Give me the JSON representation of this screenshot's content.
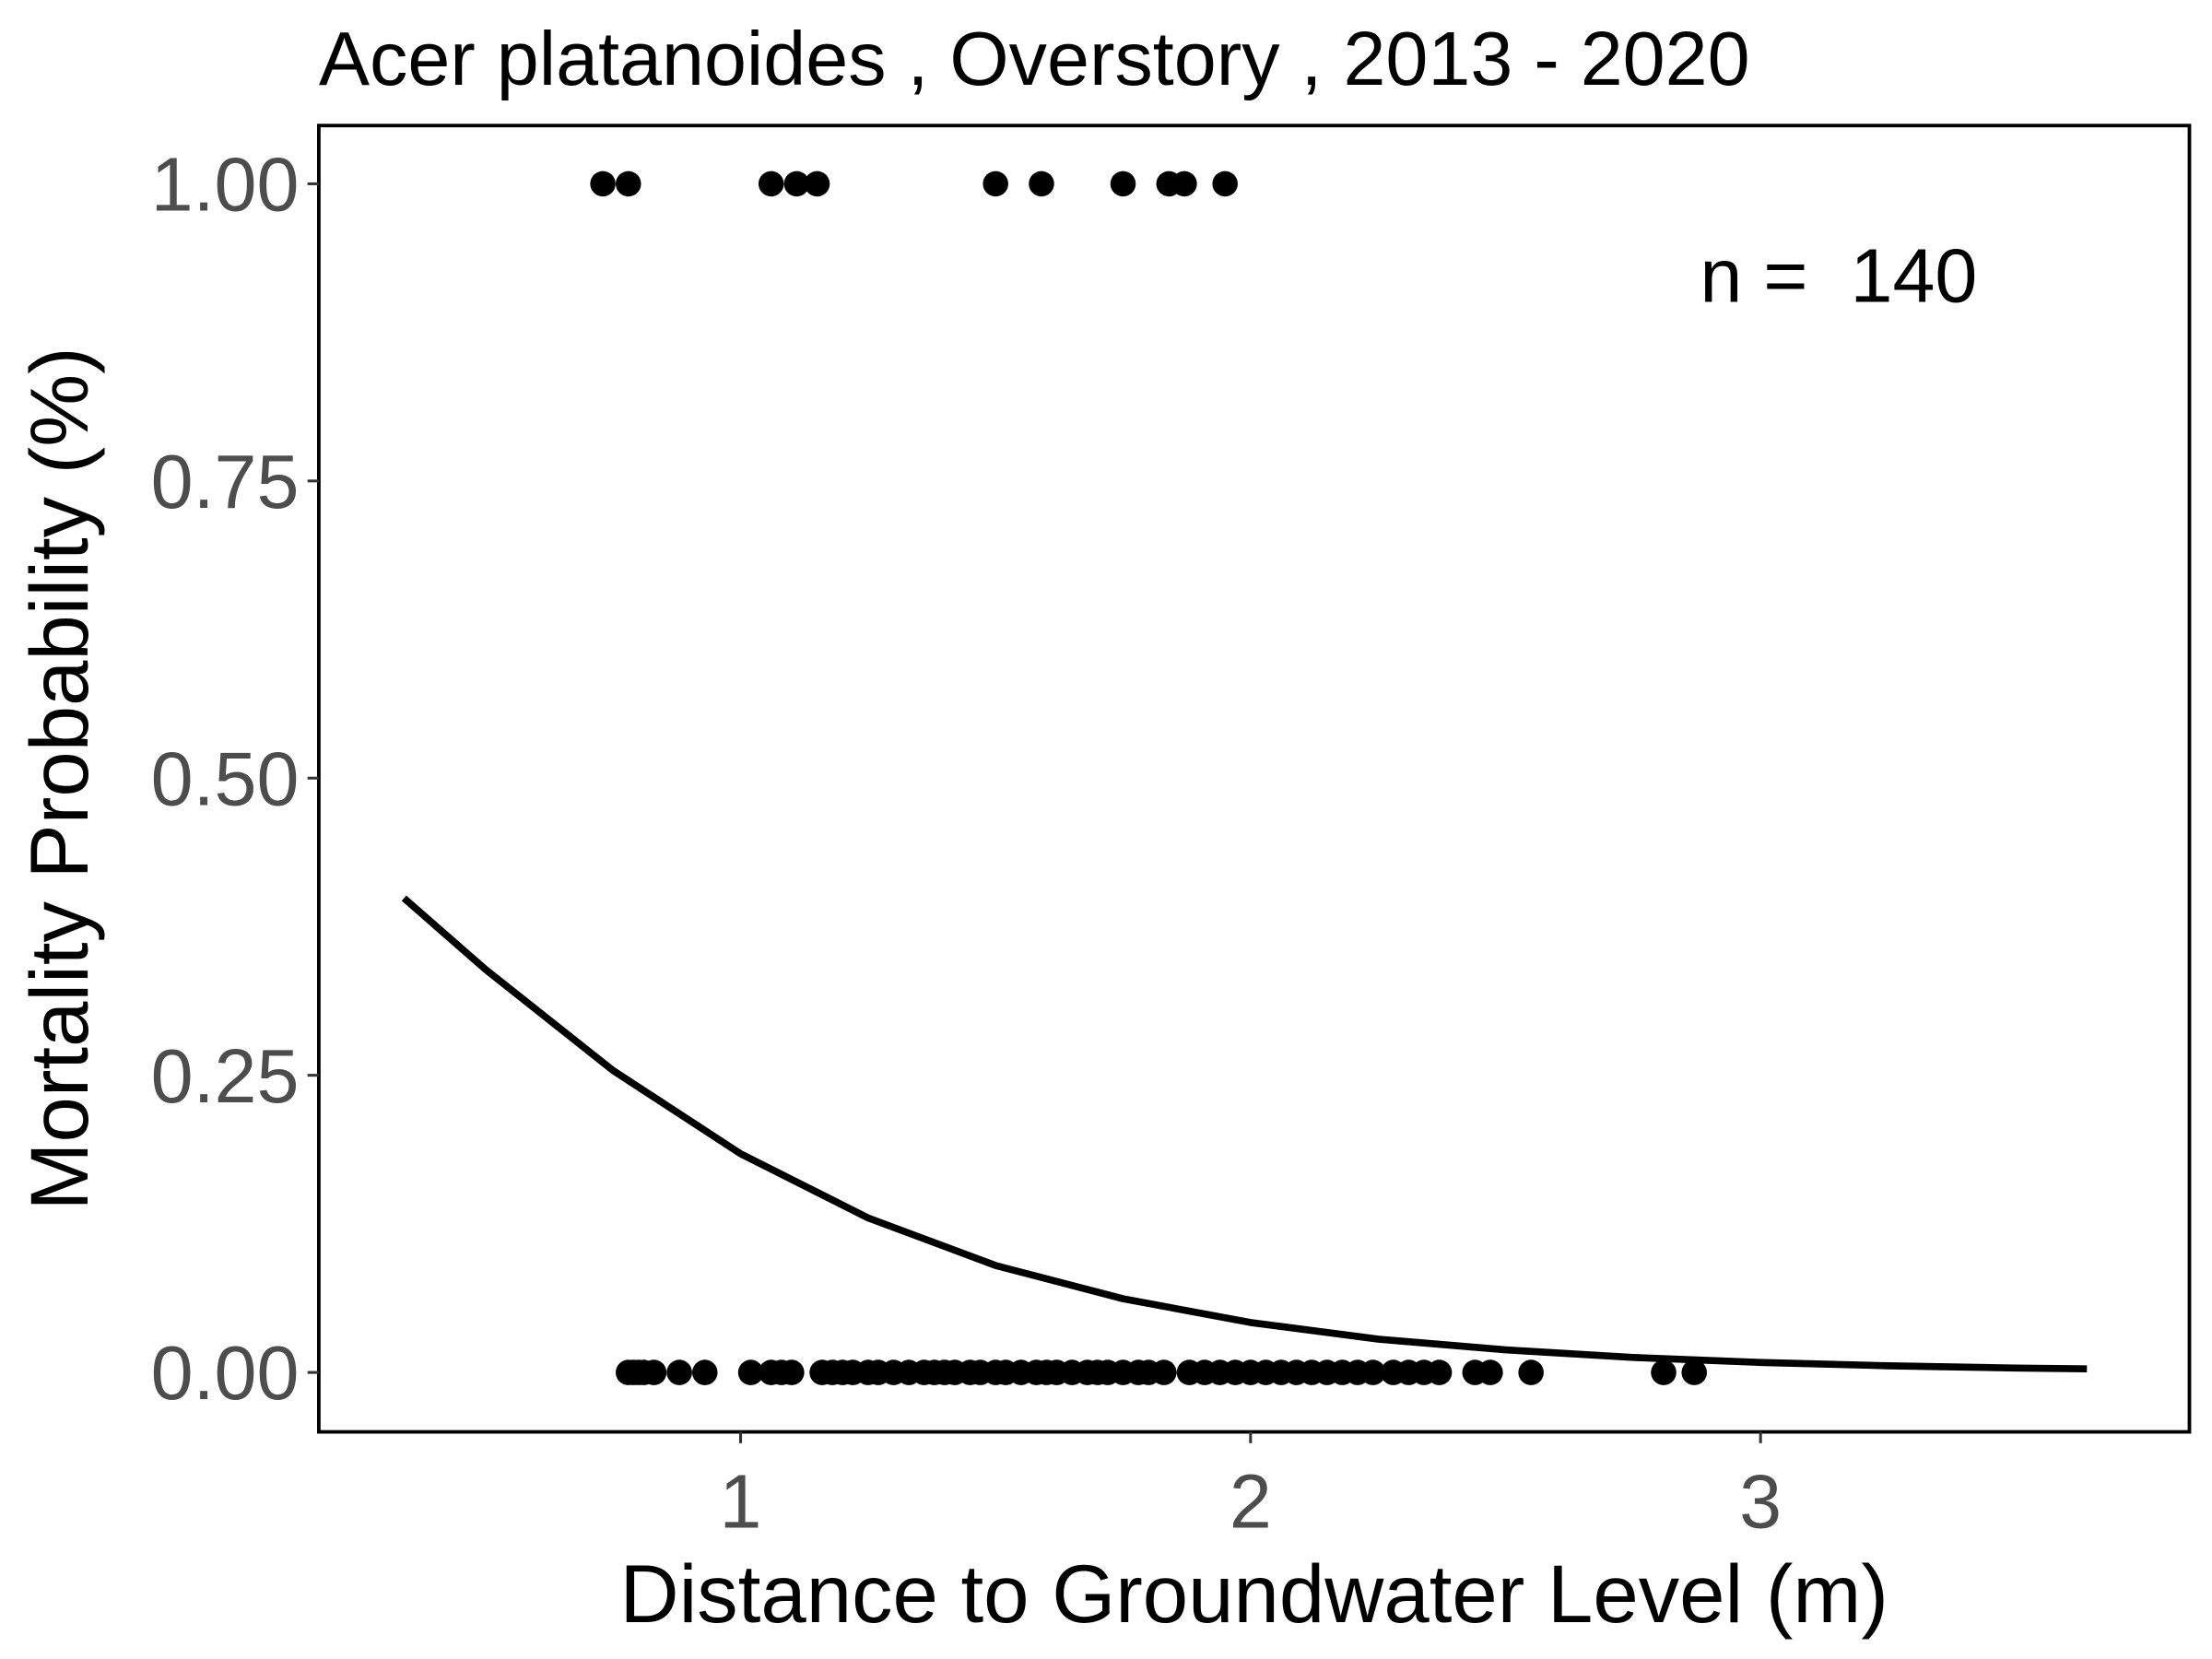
{
  "chart_data": {
    "type": "scatter",
    "title": "Acer platanoides , Overstory , 2013 - 2020",
    "xlabel": "Distance to Groundwater Level (m)",
    "ylabel": "Mortality Probability (%)",
    "annotation": "n =  140",
    "xlim": [
      0.173,
      3.841
    ],
    "ylim": [
      -0.05,
      1.049
    ],
    "xticks": [
      1,
      2,
      3
    ],
    "yticks": [
      {
        "value": 0,
        "label": "0.00"
      },
      {
        "value": 0.25,
        "label": "0.25"
      },
      {
        "value": 0.5,
        "label": "0.50"
      },
      {
        "value": 0.75,
        "label": "0.75"
      },
      {
        "value": 1,
        "label": "1.00"
      }
    ],
    "grid": false,
    "series": [
      {
        "mode": "markers",
        "color": "#000000",
        "x": [
          0.73,
          0.78,
          1.06,
          1.11,
          1.15,
          1.5,
          1.59,
          1.75,
          1.84,
          1.87,
          1.95,
          0.78,
          0.79,
          0.8,
          0.81,
          0.83,
          0.88,
          0.93,
          1.02,
          1.06,
          1.08,
          1.1,
          1.16,
          1.18,
          1.2,
          1.22,
          1.25,
          1.27,
          1.3,
          1.33,
          1.36,
          1.38,
          1.4,
          1.42,
          1.45,
          1.47,
          1.5,
          1.52,
          1.55,
          1.58,
          1.6,
          1.62,
          1.65,
          1.68,
          1.7,
          1.72,
          1.75,
          1.78,
          1.8,
          1.83,
          1.88,
          1.91,
          1.94,
          1.97,
          2.0,
          2.03,
          2.06,
          2.09,
          2.12,
          2.15,
          2.18,
          2.21,
          2.24,
          2.28,
          2.31,
          2.34,
          2.37,
          2.44,
          2.47,
          2.55,
          2.81,
          2.87
        ],
        "values": [
          1,
          1,
          1,
          1,
          1,
          1,
          1,
          1,
          1,
          1,
          1,
          0,
          0,
          0,
          0,
          0,
          0,
          0,
          0,
          0,
          0,
          0,
          0,
          0,
          0,
          0,
          0,
          0,
          0,
          0,
          0,
          0,
          0,
          0,
          0,
          0,
          0,
          0,
          0,
          0,
          0,
          0,
          0,
          0,
          0,
          0,
          0,
          0,
          0,
          0,
          0,
          0,
          0,
          0,
          0,
          0,
          0,
          0,
          0,
          0,
          0,
          0,
          0,
          0,
          0,
          0,
          0,
          0,
          0,
          0,
          0,
          0
        ]
      },
      {
        "mode": "line",
        "color": "#000000",
        "x": [
          0.34,
          0.5,
          0.75,
          1.0,
          1.25,
          1.5,
          1.75,
          2.0,
          2.25,
          2.5,
          2.75,
          3.0,
          3.25,
          3.5,
          3.64
        ],
        "values": [
          0.399,
          0.339,
          0.254,
          0.184,
          0.13,
          0.09,
          0.062,
          0.042,
          0.028,
          0.019,
          0.0126,
          0.0084,
          0.0056,
          0.0037,
          0.003
        ]
      }
    ]
  }
}
